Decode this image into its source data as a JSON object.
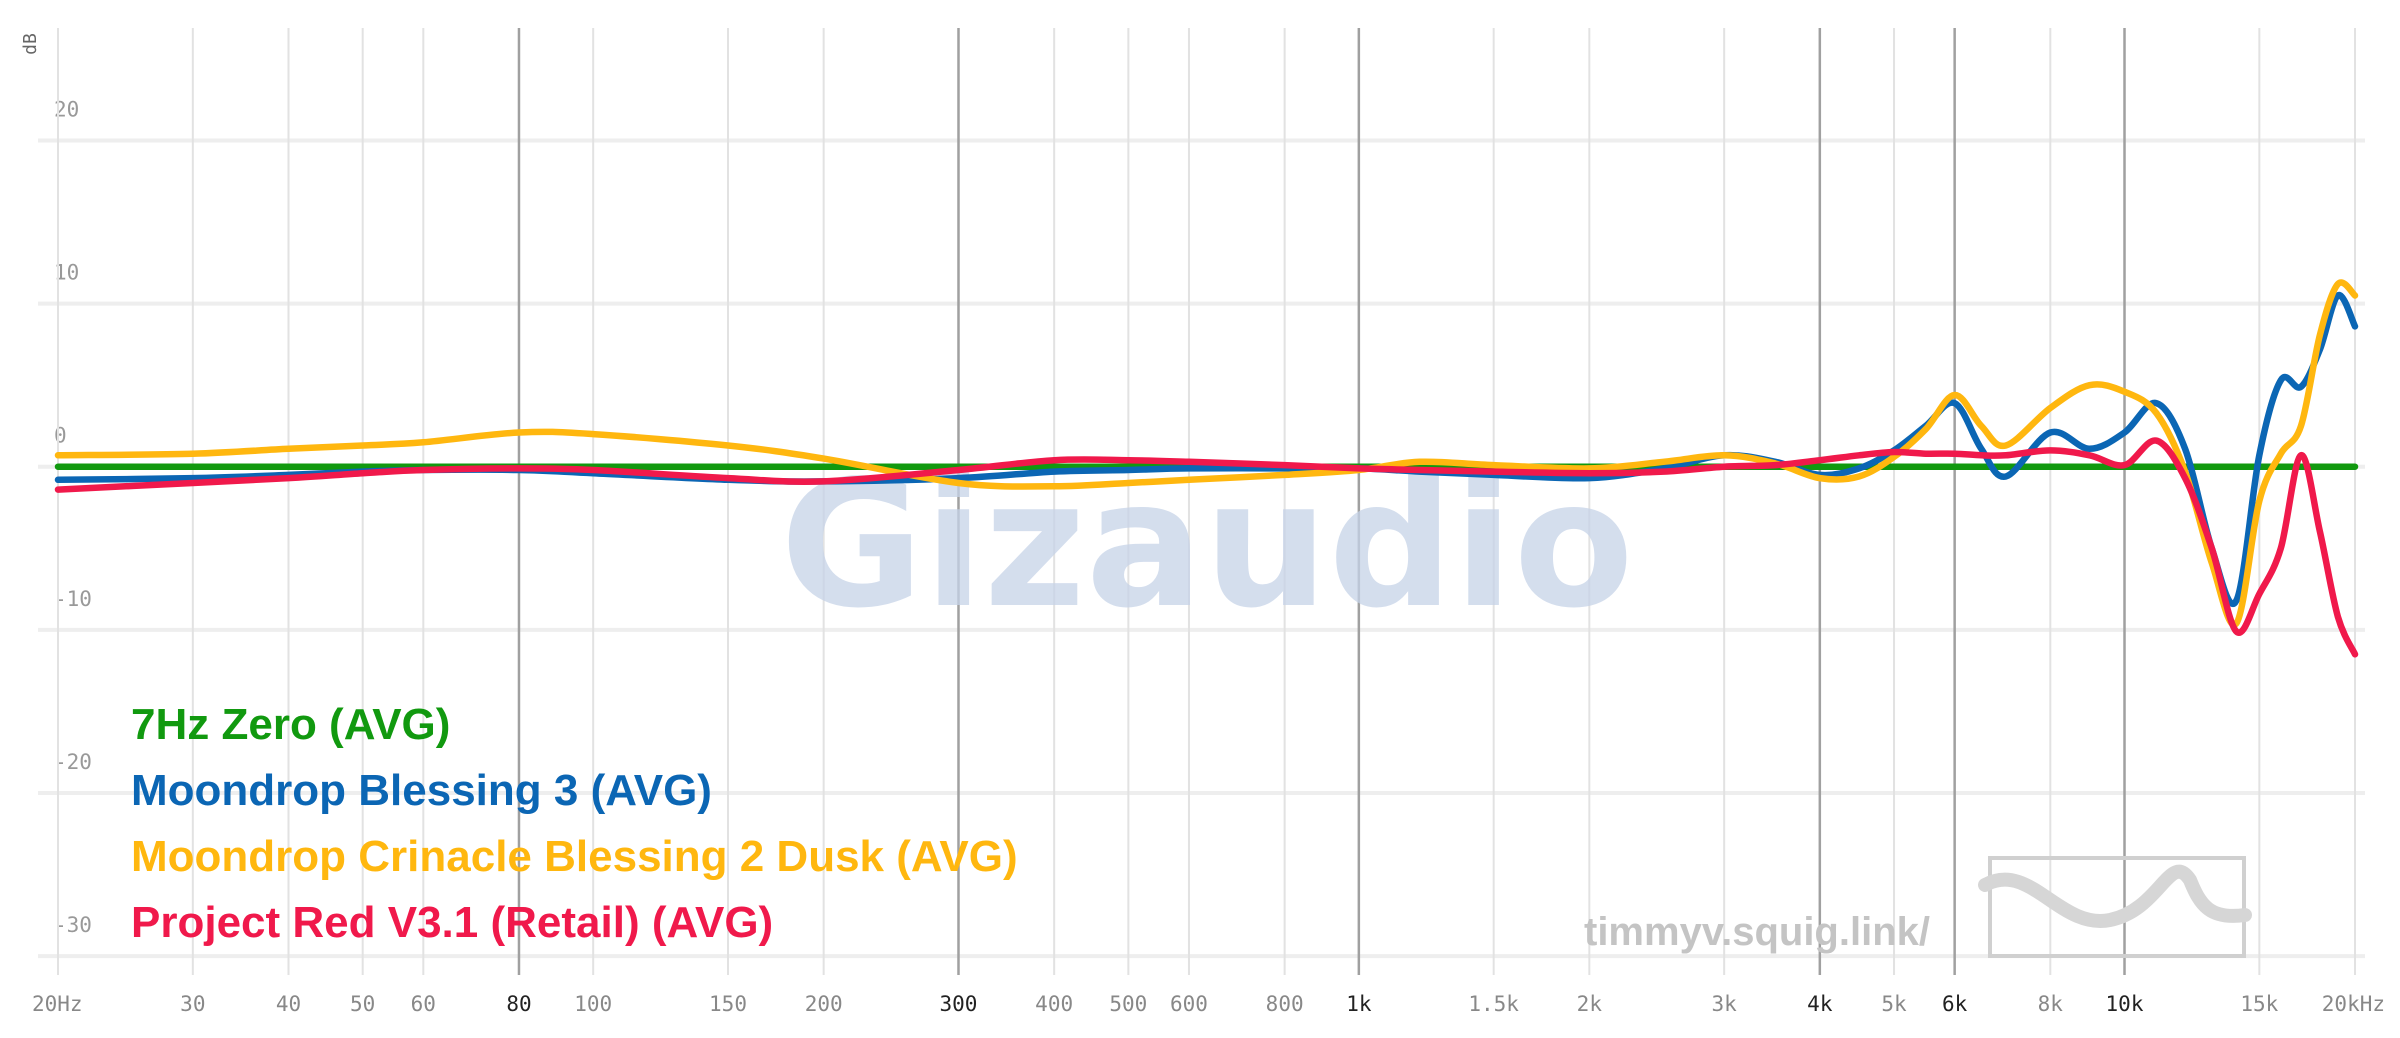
{
  "chart_data": {
    "type": "line",
    "y_label": "dB",
    "xscale": "log",
    "xlim": [
      20,
      20000
    ],
    "ylim": [
      -33,
      28
    ],
    "xticks": [
      {
        "value": 20,
        "label": "20Hz"
      },
      30,
      40,
      50,
      60,
      80,
      100,
      150,
      200,
      300,
      400,
      500,
      600,
      800,
      {
        "value": 1000,
        "label": "1k"
      },
      {
        "value": 1500,
        "label": "1.5k"
      },
      {
        "value": 2000,
        "label": "2k"
      },
      {
        "value": 3000,
        "label": "3k"
      },
      {
        "value": 4000,
        "label": "4k"
      },
      {
        "value": 5000,
        "label": "5k"
      },
      {
        "value": 6000,
        "label": "6k"
      },
      {
        "value": 8000,
        "label": "8k"
      },
      {
        "value": 10000,
        "label": "10k"
      },
      {
        "value": 15000,
        "label": "15k"
      },
      {
        "value": 20000,
        "label": "20kHz"
      }
    ],
    "major_xticks": [
      80,
      300,
      1000,
      4000,
      6000,
      10000
    ],
    "yticks": [
      20,
      10,
      0,
      -10,
      -20,
      -30
    ],
    "grid": true,
    "legend": "lower left",
    "watermarks": [
      "Gizaudio",
      "timmyv.squig.link/"
    ],
    "x": [
      20,
      30,
      40,
      50,
      60,
      80,
      100,
      150,
      200,
      300,
      400,
      500,
      600,
      800,
      1000,
      1200,
      1500,
      2000,
      2500,
      3000,
      3500,
      4000,
      4500,
      5000,
      5500,
      6000,
      6500,
      7000,
      8000,
      9000,
      10000,
      11000,
      12000,
      13000,
      14000,
      15000,
      16000,
      17000,
      18000,
      19000,
      20000
    ],
    "series": [
      {
        "name": "7Hz Zero (AVG)",
        "color": "#11990f",
        "values": [
          0,
          0,
          0,
          0,
          0,
          0,
          0,
          0,
          0,
          0,
          0,
          0,
          0,
          0,
          0,
          0,
          0,
          0,
          0,
          0,
          0,
          0,
          0,
          0,
          0,
          0,
          0,
          0,
          0,
          0,
          0,
          0,
          0,
          0,
          0,
          0,
          0,
          0,
          0,
          0,
          0
        ]
      },
      {
        "name": "Moondrop Blessing 3 (AVG)",
        "color": "#0b66b4",
        "values": [
          -0.8,
          -0.7,
          -0.5,
          -0.3,
          -0.2,
          -0.2,
          -0.4,
          -0.8,
          -0.9,
          -0.7,
          -0.3,
          -0.2,
          -0.1,
          -0.1,
          -0.1,
          -0.3,
          -0.5,
          -0.7,
          -0.1,
          0.7,
          0.3,
          -0.5,
          -0.1,
          1.0,
          2.5,
          3.9,
          1.1,
          -0.6,
          2.1,
          1.1,
          2.1,
          3.9,
          1.1,
          -5.0,
          -8.2,
          0.7,
          5.3,
          4.9,
          7.2,
          10.5,
          8.6
        ]
      },
      {
        "name": "Moondrop Crinacle Blessing 2 Dusk (AVG)",
        "color": "#ffb70f",
        "values": [
          0.7,
          0.8,
          1.1,
          1.3,
          1.5,
          2.1,
          2.0,
          1.3,
          0.5,
          -1.0,
          -1.2,
          -1.0,
          -0.8,
          -0.5,
          -0.2,
          0.3,
          0.1,
          -0.1,
          0.3,
          0.7,
          0.2,
          -0.7,
          -0.6,
          0.6,
          2.3,
          4.4,
          2.5,
          1.3,
          3.6,
          5.0,
          4.6,
          3.3,
          -0.3,
          -5.9,
          -9.6,
          -2.1,
          0.8,
          2.5,
          8.1,
          11.2,
          10.5
        ]
      },
      {
        "name": "Project Red V3.1 (Retail) (AVG)",
        "color": "#f0194b",
        "values": [
          -1.4,
          -1.0,
          -0.7,
          -0.4,
          -0.2,
          -0.1,
          -0.2,
          -0.7,
          -0.9,
          -0.2,
          0.4,
          0.4,
          0.3,
          0.1,
          -0.1,
          -0.2,
          -0.3,
          -0.4,
          -0.3,
          0,
          0.1,
          0.4,
          0.7,
          0.9,
          0.8,
          0.8,
          0.7,
          0.7,
          1.0,
          0.7,
          0.1,
          1.6,
          -0.7,
          -5.0,
          -10.1,
          -7.8,
          -5.0,
          0.7,
          -4.0,
          -9.2,
          -11.5
        ]
      }
    ]
  }
}
